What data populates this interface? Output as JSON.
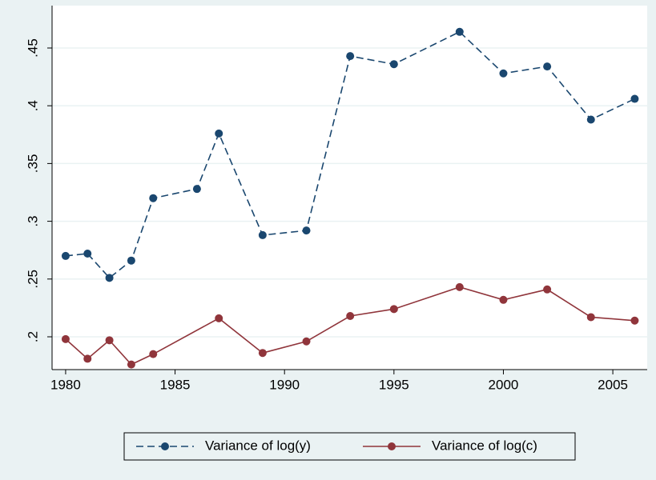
{
  "chart_data": {
    "type": "line",
    "series": [
      {
        "name": "Variance of log(y)",
        "color": "#1a476f",
        "dash": true,
        "x": [
          1980,
          1981,
          1982,
          1983,
          1984,
          1986,
          1987,
          1989,
          1991,
          1993,
          1995,
          1998,
          2000,
          2002,
          2004,
          2006
        ],
        "values": [
          0.27,
          0.272,
          0.251,
          0.266,
          0.32,
          0.328,
          0.376,
          0.288,
          0.292,
          0.443,
          0.436,
          0.464,
          0.428,
          0.434,
          0.388,
          0.406
        ]
      },
      {
        "name": "Variance of log(c)",
        "color": "#90353b",
        "dash": false,
        "x": [
          1980,
          1981,
          1982,
          1983,
          1984,
          1987,
          1989,
          1991,
          1993,
          1995,
          1998,
          2000,
          2002,
          2004,
          2006
        ],
        "values": [
          0.198,
          0.181,
          0.197,
          0.176,
          0.185,
          0.216,
          0.186,
          0.196,
          0.218,
          0.224,
          0.243,
          0.232,
          0.241,
          0.217,
          0.214
        ]
      }
    ],
    "xlim": [
      1979.38,
      2006.57
    ],
    "xticks": [
      1980,
      1985,
      1990,
      1995,
      2000,
      2005
    ],
    "ylim": [
      0.1716,
      0.4867
    ],
    "yticks": [
      {
        "value": 0.2,
        "label": ".2"
      },
      {
        "value": 0.25,
        "label": ".25"
      },
      {
        "value": 0.3,
        "label": ".3"
      },
      {
        "value": 0.35,
        "label": ".35"
      },
      {
        "value": 0.4,
        "label": ".4"
      },
      {
        "value": 0.45,
        "label": ".45"
      }
    ],
    "grid": true
  }
}
